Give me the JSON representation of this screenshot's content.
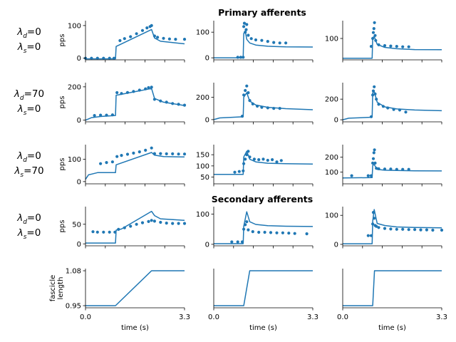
{
  "figure": {
    "section_titles": {
      "primary": "Primary afferents",
      "secondary": "Secondary afferents"
    },
    "colors": {
      "series": "#1f77b4",
      "axis": "#000000",
      "background": "#ffffff"
    }
  },
  "chart_data": [
    {
      "type": "line",
      "panel": "row1-col1",
      "row_label": [
        "λd=0",
        "λs=0"
      ],
      "ylabel": "pps",
      "yticks": [
        0,
        100
      ],
      "ylim": [
        -5,
        115
      ],
      "xlim": [
        0,
        3.3
      ],
      "series": [
        {
          "kind": "line",
          "x": [
            0,
            1.0,
            1.02,
            2.2,
            2.3,
            2.5,
            3.3
          ],
          "y": [
            -2,
            -2,
            36,
            88,
            62,
            52,
            44
          ]
        },
        {
          "kind": "scatter",
          "x": [
            0,
            0.2,
            0.4,
            0.6,
            0.8,
            0.95,
            1.15,
            1.3,
            1.5,
            1.7,
            1.9,
            2.05,
            2.15,
            2.2,
            2.3,
            2.4,
            2.6,
            2.8,
            3.0,
            3.3
          ],
          "y": [
            0,
            0,
            0,
            0,
            0,
            0,
            54,
            60,
            66,
            75,
            85,
            93,
            97,
            100,
            68,
            64,
            61,
            59,
            58,
            58
          ]
        }
      ]
    },
    {
      "type": "line",
      "panel": "row1-col2",
      "title": "Primary afferents",
      "yticks": [
        0,
        100
      ],
      "ylim": [
        -8,
        145
      ],
      "xlim": [
        0,
        3.3
      ],
      "series": [
        {
          "kind": "line",
          "x": [
            0,
            0.98,
            1.0,
            1.05,
            1.1,
            1.2,
            1.4,
            1.8,
            2.4,
            3.3
          ],
          "y": [
            0,
            0,
            95,
            105,
            72,
            58,
            50,
            45,
            43,
            42
          ]
        },
        {
          "kind": "scatter",
          "x": [
            0.8,
            0.9,
            0.98,
            1.0,
            1.02,
            1.05,
            1.08,
            1.1,
            1.15,
            1.25,
            1.4,
            1.6,
            1.8,
            2.0,
            2.2,
            2.4
          ],
          "y": [
            2,
            2,
            2,
            122,
            135,
            100,
            110,
            130,
            88,
            75,
            70,
            68,
            64,
            60,
            58,
            58
          ]
        }
      ]
    },
    {
      "type": "line",
      "panel": "row1-col3",
      "yticks": [
        100
      ],
      "ylim": [
        -8,
        190
      ],
      "xlim": [
        0,
        3.3
      ],
      "series": [
        {
          "kind": "line",
          "x": [
            0,
            0.98,
            1.0,
            1.05,
            1.15,
            1.4,
            1.8,
            2.4,
            3.3
          ],
          "y": [
            0,
            0,
            105,
            110,
            70,
            55,
            48,
            44,
            43
          ]
        },
        {
          "kind": "scatter",
          "x": [
            0.95,
            1.0,
            1.02,
            1.04,
            1.06,
            1.08,
            1.1,
            1.2,
            1.4,
            1.6,
            1.8,
            2.0,
            2.2
          ],
          "y": [
            60,
            100,
            130,
            150,
            180,
            115,
            90,
            68,
            64,
            62,
            60,
            58,
            58
          ]
        }
      ]
    },
    {
      "type": "line",
      "panel": "row2-col1",
      "row_label": [
        "λd=70",
        "λs=0"
      ],
      "ylabel": "pps",
      "yticks": [
        0,
        200
      ],
      "ylim": [
        -10,
        225
      ],
      "xlim": [
        0,
        3.3
      ],
      "series": [
        {
          "kind": "line",
          "x": [
            0,
            0.2,
            0.5,
            1.0,
            1.02,
            1.1,
            2.2,
            2.3,
            2.6,
            3.3
          ],
          "y": [
            0,
            15,
            22,
            28,
            150,
            152,
            190,
            130,
            108,
            88
          ]
        },
        {
          "kind": "scatter",
          "x": [
            0.3,
            0.5,
            0.7,
            0.9,
            1.05,
            1.2,
            1.4,
            1.6,
            1.8,
            2.0,
            2.1,
            2.2,
            2.3,
            2.5,
            2.7,
            2.9,
            3.1,
            3.3
          ],
          "y": [
            28,
            30,
            30,
            32,
            165,
            160,
            166,
            172,
            180,
            188,
            195,
            198,
            125,
            115,
            108,
            100,
            95,
            90
          ]
        }
      ]
    },
    {
      "type": "line",
      "panel": "row2-col2",
      "yticks": [
        0,
        200
      ],
      "ylim": [
        -20,
        330
      ],
      "xlim": [
        0,
        3.3
      ],
      "series": [
        {
          "kind": "line",
          "x": [
            0,
            0.2,
            0.98,
            1.0,
            1.1,
            1.2,
            1.4,
            1.8,
            2.4,
            3.3
          ],
          "y": [
            0,
            15,
            25,
            200,
            240,
            165,
            130,
            110,
            98,
            88
          ]
        },
        {
          "kind": "scatter",
          "x": [
            0.95,
            1.0,
            1.05,
            1.1,
            1.15,
            1.2,
            1.3,
            1.45,
            1.6,
            1.8,
            2.0,
            2.2
          ],
          "y": [
            30,
            220,
            260,
            300,
            240,
            170,
            140,
            120,
            110,
            105,
            100,
            100
          ]
        }
      ]
    },
    {
      "type": "line",
      "panel": "row2-col3",
      "yticks": [
        0,
        200
      ],
      "ylim": [
        -20,
        360
      ],
      "xlim": [
        0,
        3.3
      ],
      "series": [
        {
          "kind": "line",
          "x": [
            0,
            0.2,
            0.98,
            1.0,
            1.05,
            1.15,
            1.4,
            1.8,
            2.4,
            3.3
          ],
          "y": [
            0,
            15,
            25,
            260,
            275,
            170,
            125,
            105,
            95,
            88
          ]
        },
        {
          "kind": "scatter",
          "x": [
            0.95,
            1.0,
            1.02,
            1.05,
            1.08,
            1.12,
            1.2,
            1.35,
            1.5,
            1.7,
            1.9,
            2.1
          ],
          "y": [
            30,
            240,
            280,
            320,
            250,
            200,
            150,
            130,
            115,
            100,
            95,
            75
          ]
        }
      ]
    },
    {
      "type": "line",
      "panel": "row3-col1",
      "row_label": [
        "λd=0",
        "λs=70"
      ],
      "ylabel": "pps",
      "yticks": [
        0,
        100
      ],
      "ylim": [
        -10,
        165
      ],
      "xlim": [
        0,
        3.3
      ],
      "series": [
        {
          "kind": "line",
          "x": [
            0,
            0.1,
            0.4,
            1.0,
            1.02,
            2.2,
            2.3,
            2.6,
            3.3
          ],
          "y": [
            10,
            30,
            40,
            40,
            75,
            130,
            118,
            112,
            110
          ]
        },
        {
          "kind": "scatter",
          "x": [
            0.5,
            0.7,
            0.9,
            1.05,
            1.2,
            1.4,
            1.6,
            1.8,
            2.0,
            2.2,
            2.3,
            2.5,
            2.7,
            2.9,
            3.1,
            3.3
          ],
          "y": [
            80,
            85,
            88,
            112,
            117,
            122,
            127,
            133,
            140,
            150,
            125,
            125,
            124,
            124,
            123,
            123
          ]
        }
      ]
    },
    {
      "type": "line",
      "panel": "row3-col2",
      "yticks": [
        50,
        100,
        150
      ],
      "ylim": [
        20,
        195
      ],
      "xlim": [
        0,
        3.3
      ],
      "series": [
        {
          "kind": "line",
          "x": [
            0,
            0.98,
            1.0,
            1.1,
            1.2,
            1.4,
            1.8,
            2.4,
            3.3
          ],
          "y": [
            62,
            62,
            140,
            165,
            130,
            118,
            112,
            110,
            108
          ]
        },
        {
          "kind": "scatter",
          "x": [
            0.7,
            0.85,
            0.98,
            1.0,
            1.05,
            1.1,
            1.15,
            1.2,
            1.35,
            1.5,
            1.65,
            1.8,
            1.95,
            2.1,
            2.25
          ],
          "y": [
            72,
            75,
            78,
            110,
            130,
            150,
            165,
            140,
            130,
            128,
            130,
            125,
            128,
            118,
            124
          ]
        }
      ]
    },
    {
      "type": "line",
      "panel": "row3-col3",
      "yticks": [
        100,
        200
      ],
      "ylim": [
        20,
        285
      ],
      "xlim": [
        0,
        3.3
      ],
      "series": [
        {
          "kind": "line",
          "x": [
            0,
            0.98,
            1.0,
            1.05,
            1.15,
            1.4,
            1.8,
            2.4,
            3.3
          ],
          "y": [
            60,
            62,
            145,
            150,
            118,
            112,
            110,
            108,
            107
          ]
        },
        {
          "kind": "scatter",
          "x": [
            0.3,
            0.85,
            0.95,
            1.0,
            1.02,
            1.04,
            1.06,
            1.08,
            1.12,
            1.2,
            1.4,
            1.6,
            1.8,
            2.0,
            2.2
          ],
          "y": [
            75,
            75,
            75,
            160,
            190,
            230,
            250,
            160,
            125,
            122,
            120,
            120,
            118,
            118,
            118
          ]
        }
      ]
    },
    {
      "type": "line",
      "panel": "row4-col1",
      "row_label": [
        "λd=0",
        "λs=0"
      ],
      "ylabel": "pps",
      "yticks": [
        0,
        50
      ],
      "ylim": [
        -5,
        95
      ],
      "xlim": [
        0,
        3.3
      ],
      "series": [
        {
          "kind": "line",
          "x": [
            0,
            1.0,
            1.02,
            1.2,
            2.2,
            2.3,
            2.5,
            3.3
          ],
          "y": [
            2,
            2,
            35,
            38,
            83,
            72,
            64,
            60
          ]
        },
        {
          "kind": "scatter",
          "x": [
            0.25,
            0.4,
            0.6,
            0.8,
            0.98,
            1.1,
            1.3,
            1.5,
            1.7,
            1.9,
            2.1,
            2.2,
            2.3,
            2.5,
            2.7,
            2.9,
            3.1,
            3.3
          ],
          "y": [
            31,
            30,
            30,
            30,
            30,
            37,
            41,
            45,
            50,
            54,
            57,
            60,
            58,
            55,
            53,
            52,
            52,
            52
          ]
        }
      ]
    },
    {
      "type": "line",
      "panel": "row4-col2",
      "title": "Secondary afferents",
      "yticks": [
        0,
        100
      ],
      "ylim": [
        -5,
        125
      ],
      "xlim": [
        0,
        3.3
      ],
      "series": [
        {
          "kind": "line",
          "x": [
            0,
            0.98,
            1.0,
            1.1,
            1.2,
            1.4,
            1.8,
            2.4,
            3.3
          ],
          "y": [
            2,
            2,
            60,
            108,
            75,
            66,
            62,
            60,
            59
          ]
        },
        {
          "kind": "scatter",
          "x": [
            0.6,
            0.8,
            0.95,
            1.0,
            1.05,
            1.1,
            1.15,
            1.3,
            1.5,
            1.7,
            1.9,
            2.1,
            2.3,
            2.5,
            2.7,
            3.1
          ],
          "y": [
            8,
            8,
            8,
            50,
            65,
            75,
            48,
            42,
            40,
            40,
            39,
            38,
            38,
            37,
            36,
            35
          ]
        }
      ]
    },
    {
      "type": "line",
      "panel": "row4-col3",
      "yticks": [
        0,
        100
      ],
      "ylim": [
        -5,
        130
      ],
      "xlim": [
        0,
        3.3
      ],
      "series": [
        {
          "kind": "line",
          "x": [
            0,
            0.98,
            1.0,
            1.05,
            1.15,
            1.4,
            1.8,
            2.4,
            3.3
          ],
          "y": [
            2,
            2,
            80,
            120,
            72,
            65,
            60,
            58,
            57
          ]
        },
        {
          "kind": "scatter",
          "x": [
            0.85,
            0.95,
            1.0,
            1.02,
            1.05,
            1.08,
            1.12,
            1.2,
            1.4,
            1.6,
            1.8,
            2.0,
            2.2,
            2.4,
            2.6,
            2.8,
            3.0,
            3.3
          ],
          "y": [
            30,
            30,
            70,
            110,
            90,
            65,
            62,
            58,
            55,
            53,
            52,
            52,
            51,
            51,
            50,
            50,
            49,
            49
          ]
        }
      ]
    },
    {
      "type": "line",
      "panel": "row5-col1",
      "ylabel": [
        "fascicle",
        "length"
      ],
      "yticks": [
        0.95,
        1.08
      ],
      "ylim": [
        0.942,
        1.088
      ],
      "xlim": [
        0,
        3.3
      ],
      "xticks": [
        0.0,
        3.3
      ],
      "xlabel": "time (s)",
      "series": [
        {
          "kind": "line",
          "x": [
            0,
            1.0,
            2.2,
            3.3
          ],
          "y": [
            0.95,
            0.95,
            1.08,
            1.08
          ]
        }
      ]
    },
    {
      "type": "line",
      "panel": "row5-col2",
      "ylim": [
        0.942,
        1.088
      ],
      "xlim": [
        0,
        3.3
      ],
      "xticks": [
        0.0,
        3.3
      ],
      "xlabel": "time (s)",
      "series": [
        {
          "kind": "line",
          "x": [
            0,
            1.0,
            1.2,
            3.3
          ],
          "y": [
            0.95,
            0.95,
            1.08,
            1.08
          ]
        }
      ]
    },
    {
      "type": "line",
      "panel": "row5-col3",
      "ylim": [
        0.942,
        1.088
      ],
      "xlim": [
        0,
        3.3
      ],
      "xticks": [
        0.0,
        3.3
      ],
      "xlabel": "time (s)",
      "series": [
        {
          "kind": "line",
          "x": [
            0,
            1.0,
            1.06,
            3.3
          ],
          "y": [
            0.95,
            0.95,
            1.08,
            1.08
          ]
        }
      ]
    }
  ]
}
